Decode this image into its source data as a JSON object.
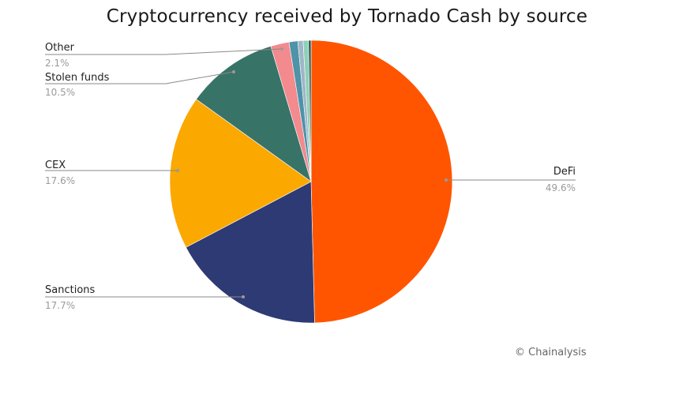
{
  "chart_data": {
    "type": "pie",
    "title": "Cryptocurrency received by Tornado Cash by source",
    "credit": "© Chainalysis",
    "slices": [
      {
        "name": "DeFi",
        "value": 49.6,
        "label": "49.6%",
        "color": "#FF5500"
      },
      {
        "name": "Sanctions",
        "value": 17.7,
        "label": "17.7%",
        "color": "#2D3A74"
      },
      {
        "name": "CEX",
        "value": 17.6,
        "label": "17.6%",
        "color": "#FBA800"
      },
      {
        "name": "Stolen funds",
        "value": 10.5,
        "label": "10.5%",
        "color": "#387368"
      },
      {
        "name": "Other",
        "value": 2.1,
        "label": "2.1%",
        "color": "#F28A8E"
      },
      {
        "name": "",
        "value": 1.0,
        "label": "",
        "color": "#4E93A8"
      },
      {
        "name": "",
        "value": 0.6,
        "label": "",
        "color": "#9FB6C8"
      },
      {
        "name": "",
        "value": 0.6,
        "label": "",
        "color": "#8FCFB8"
      },
      {
        "name": "",
        "value": 0.3,
        "label": "",
        "color": "#2E5F5A"
      }
    ]
  }
}
